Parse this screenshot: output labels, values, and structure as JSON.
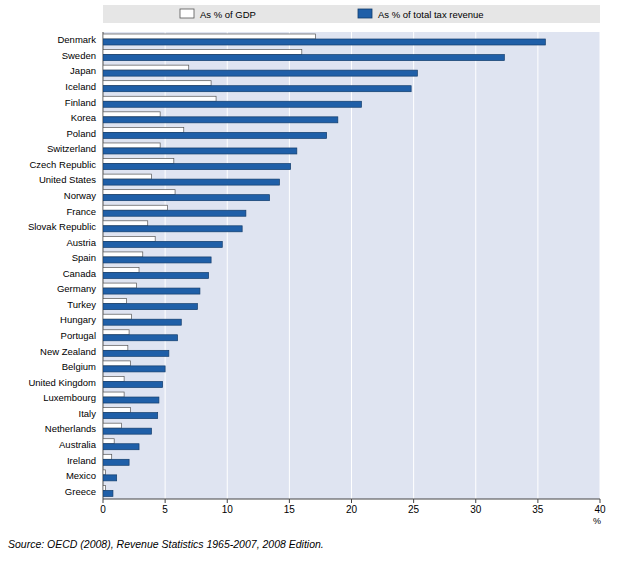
{
  "chart_data": {
    "type": "bar",
    "orientation": "horizontal",
    "grid": true,
    "legend": "top",
    "categories": [
      "Denmark",
      "Sweden",
      "Japan",
      "Iceland",
      "Finland",
      "Korea",
      "Poland",
      "Switzerland",
      "Czech Republic",
      "United States",
      "Norway",
      "France",
      "Slovak Republic",
      "Austria",
      "Spain",
      "Canada",
      "Germany",
      "Turkey",
      "Hungary",
      "Portugal",
      "New Zealand",
      "Belgium",
      "United Kingdom",
      "Luxembourg",
      "Italy",
      "Netherlands",
      "Australia",
      "Ireland",
      "Mexico",
      "Greece"
    ],
    "series": [
      {
        "name": "As % of GDP",
        "color": "#ffffff",
        "values": [
          17.1,
          16.0,
          6.9,
          8.7,
          9.1,
          4.6,
          6.5,
          4.6,
          5.7,
          3.9,
          5.8,
          5.2,
          3.6,
          4.2,
          3.2,
          2.9,
          2.7,
          1.9,
          2.3,
          2.1,
          2.0,
          2.2,
          1.7,
          1.7,
          2.2,
          1.5,
          0.9,
          0.7,
          0.2,
          0.2
        ]
      },
      {
        "name": "As % of total tax revenue",
        "color": "#1f5fa8",
        "values": [
          35.6,
          32.3,
          25.3,
          24.8,
          20.8,
          18.9,
          18.0,
          15.6,
          15.1,
          14.2,
          13.4,
          11.5,
          11.2,
          9.6,
          8.7,
          8.5,
          7.8,
          7.6,
          6.3,
          6.0,
          5.3,
          5.0,
          4.8,
          4.5,
          4.4,
          3.9,
          2.9,
          2.1,
          1.1,
          0.8
        ]
      }
    ],
    "x_label": "%",
    "xlim": [
      0,
      40
    ],
    "xticks": [
      0,
      5,
      10,
      15,
      20,
      25,
      30,
      35,
      40
    ],
    "annotations": [
      "Source: OECD (2008), Revenue Statistics 1965-2007, 2008 Edition."
    ]
  }
}
